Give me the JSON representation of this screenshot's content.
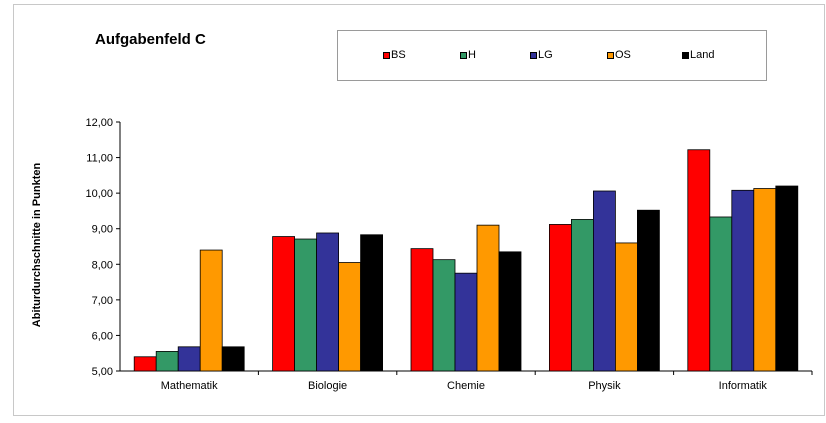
{
  "chart_data": {
    "type": "bar",
    "title": "Aufgabenfeld C",
    "xlabel": "",
    "ylabel": "Abiturdurchschnitte in Punkten",
    "ylim": [
      5,
      12
    ],
    "yticks": [
      "5,00",
      "6,00",
      "7,00",
      "8,00",
      "9,00",
      "10,00",
      "11,00",
      "12,00"
    ],
    "categories": [
      "Mathematik",
      "Biologie",
      "Chemie",
      "Physik",
      "Informatik"
    ],
    "series": [
      {
        "name": "BS",
        "color": "#ff0000",
        "values": [
          5.4,
          8.78,
          8.44,
          9.12,
          11.22
        ]
      },
      {
        "name": "H",
        "color": "#339966",
        "values": [
          5.55,
          8.71,
          8.13,
          9.26,
          9.33
        ]
      },
      {
        "name": "LG",
        "color": "#333399",
        "values": [
          5.68,
          8.88,
          7.75,
          10.06,
          10.08
        ]
      },
      {
        "name": "OS",
        "color": "#ff9900",
        "values": [
          8.4,
          8.05,
          9.1,
          8.6,
          10.13
        ]
      },
      {
        "name": "Land",
        "color": "#000000",
        "values": [
          5.68,
          8.83,
          8.35,
          9.52,
          10.2
        ]
      }
    ],
    "grid": false,
    "legend_position": "top"
  }
}
